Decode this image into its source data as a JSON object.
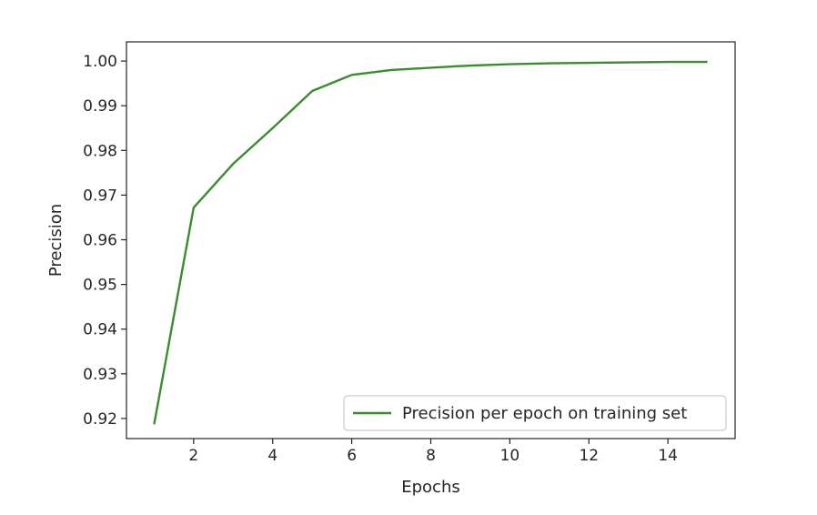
{
  "chart_data": {
    "type": "line",
    "title": "",
    "xlabel": "Epochs",
    "ylabel": "Precision",
    "x": [
      1,
      2,
      3,
      4,
      5,
      6,
      7,
      8,
      9,
      10,
      11,
      12,
      13,
      14,
      15
    ],
    "series": [
      {
        "name": "Precision per epoch on training set",
        "color": "#3a8c2f",
        "values": [
          0.9187,
          0.9672,
          0.977,
          0.985,
          0.9933,
          0.9969,
          0.998,
          0.9985,
          0.999,
          0.9993,
          0.9995,
          0.9996,
          0.9997,
          0.9998,
          0.9998
        ]
      }
    ],
    "xlim": [
      0.3,
      15.7
    ],
    "ylim": [
      0.9155,
      1.0043
    ],
    "xticks": [
      2,
      4,
      6,
      8,
      10,
      12,
      14
    ],
    "xtick_labels": [
      "2",
      "4",
      "6",
      "8",
      "10",
      "12",
      "14"
    ],
    "yticks": [
      0.92,
      0.93,
      0.94,
      0.95,
      0.96,
      0.97,
      0.98,
      0.99,
      1.0
    ],
    "ytick_labels": [
      "0.92",
      "0.93",
      "0.94",
      "0.95",
      "0.96",
      "0.97",
      "0.98",
      "0.99",
      "1.00"
    ],
    "grid": false,
    "legend_position": "lower right"
  }
}
